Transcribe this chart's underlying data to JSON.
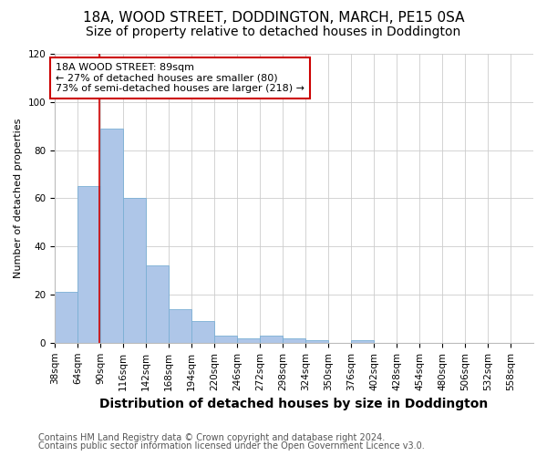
{
  "title_line1": "18A, WOOD STREET, DODDINGTON, MARCH, PE15 0SA",
  "title_line2": "Size of property relative to detached houses in Doddington",
  "xlabel": "Distribution of detached houses by size in Doddington",
  "ylabel": "Number of detached properties",
  "bin_labels": [
    "38sqm",
    "64sqm",
    "90sqm",
    "116sqm",
    "142sqm",
    "168sqm",
    "194sqm",
    "220sqm",
    "246sqm",
    "272sqm",
    "298sqm",
    "324sqm",
    "350sqm",
    "376sqm",
    "402sqm",
    "428sqm",
    "454sqm",
    "480sqm",
    "506sqm",
    "532sqm",
    "558sqm"
  ],
  "bin_edges": [
    38,
    64,
    90,
    116,
    142,
    168,
    194,
    220,
    246,
    272,
    298,
    324,
    350,
    376,
    402,
    428,
    454,
    480,
    506,
    532,
    558
  ],
  "bar_heights": [
    21,
    65,
    89,
    60,
    32,
    14,
    9,
    3,
    2,
    3,
    2,
    1,
    0,
    1,
    0,
    0,
    0,
    0,
    0,
    0
  ],
  "bar_color": "#aec6e8",
  "bar_edge_color": "#7aafd4",
  "vline_x": 89,
  "vline_color": "#cc0000",
  "ylim": [
    0,
    120
  ],
  "yticks": [
    0,
    20,
    40,
    60,
    80,
    100,
    120
  ],
  "annotation_text": "18A WOOD STREET: 89sqm\n← 27% of detached houses are smaller (80)\n73% of semi-detached houses are larger (218) →",
  "annotation_box_color": "#ffffff",
  "annotation_box_edge": "#cc0000",
  "footnote_line1": "Contains HM Land Registry data © Crown copyright and database right 2024.",
  "footnote_line2": "Contains public sector information licensed under the Open Government Licence v3.0.",
  "bg_color": "#ffffff",
  "grid_color": "#cccccc",
  "title_fontsize": 11,
  "subtitle_fontsize": 10,
  "axis_label_fontsize": 9,
  "ylabel_fontsize": 8,
  "tick_fontsize": 7.5,
  "annotation_fontsize": 8,
  "footnote_fontsize": 7
}
